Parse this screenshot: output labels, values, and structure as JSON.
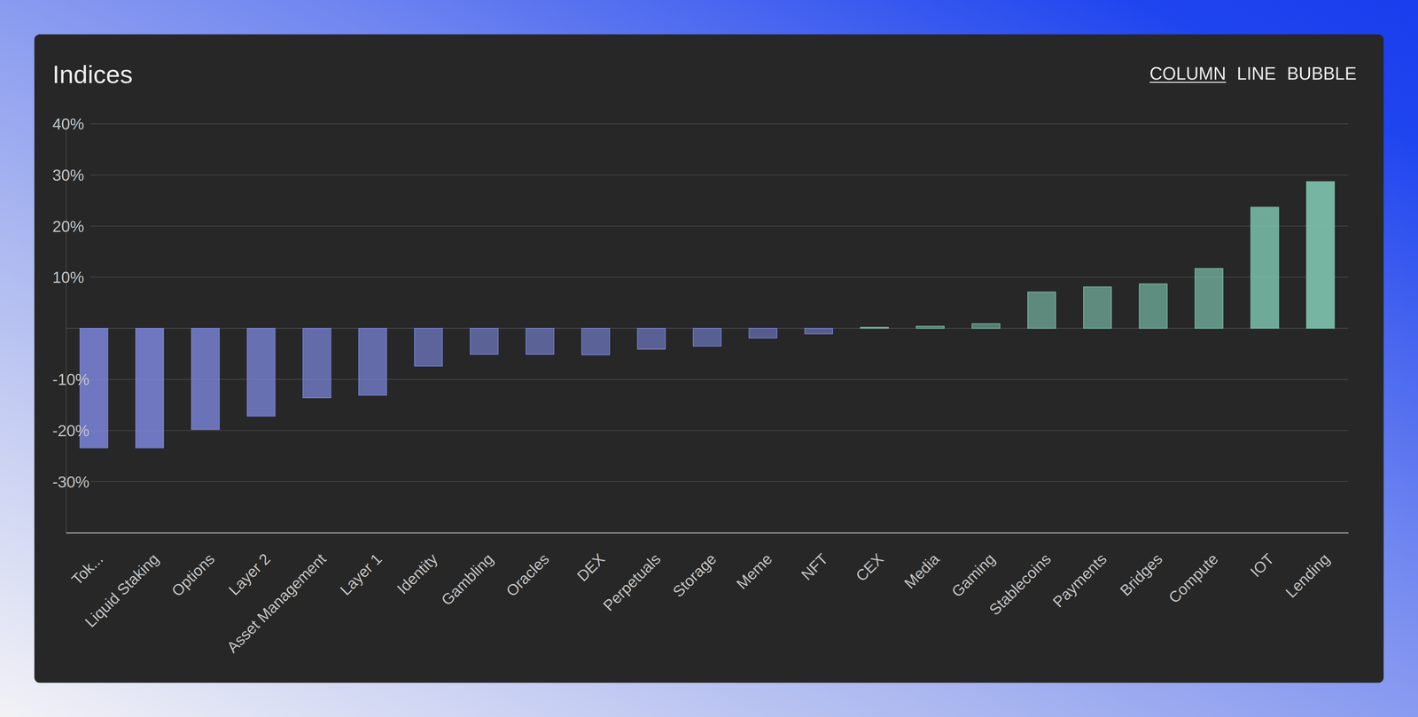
{
  "chart_data": {
    "type": "bar",
    "title": "Indices",
    "categories": [
      "Tok...",
      "Liquid Staking",
      "Options",
      "Layer 2",
      "Asset Management",
      "Layer 1",
      "Identity",
      "Gambling",
      "Oracles",
      "DEX",
      "Perpetuals",
      "Storage",
      "Meme",
      "NFT",
      "CEX",
      "Media",
      "Gaming",
      "Stablecoins",
      "Payments",
      "Bridges",
      "Compute",
      "IOT",
      "Lending"
    ],
    "values": [
      -23.4,
      -23.4,
      -19.8,
      -17.2,
      -13.6,
      -13.1,
      -7.4,
      -5.1,
      -5.1,
      -5.2,
      -4.1,
      -3.5,
      -1.9,
      -1.1,
      0.2,
      0.4,
      0.9,
      7.1,
      8.1,
      8.7,
      11.7,
      23.7,
      28.7
    ],
    "colors": [
      "#7b86db",
      "#7b86db",
      "#7b86db",
      "#7b86db",
      "#7b86db",
      "#7b86db",
      "#7b86db",
      "#7b86db",
      "#7b86db",
      "#7b86db",
      "#7b86db",
      "#7b86db",
      "#7b86db",
      "#7b86db",
      "#7cc1ac",
      "#7cc1ac",
      "#7cc1ac",
      "#7cc1ac",
      "#7cc1ac",
      "#7cc1ac",
      "#7cc1ac",
      "#7cc1ac",
      "#7cc1ac"
    ],
    "ylim": [
      -40,
      40
    ],
    "yticks": [
      {
        "value": 40,
        "label": "40%"
      },
      {
        "value": 30,
        "label": "30%"
      },
      {
        "value": 20,
        "label": "20%"
      },
      {
        "value": 10,
        "label": "10%"
      },
      {
        "value": -10,
        "label": "-10%"
      },
      {
        "value": -20,
        "label": "-20%"
      },
      {
        "value": -30,
        "label": "-30%"
      }
    ],
    "grid": true
  },
  "view_tabs": {
    "options": [
      "COLUMN",
      "LINE",
      "BUBBLE"
    ],
    "selected": "COLUMN"
  }
}
